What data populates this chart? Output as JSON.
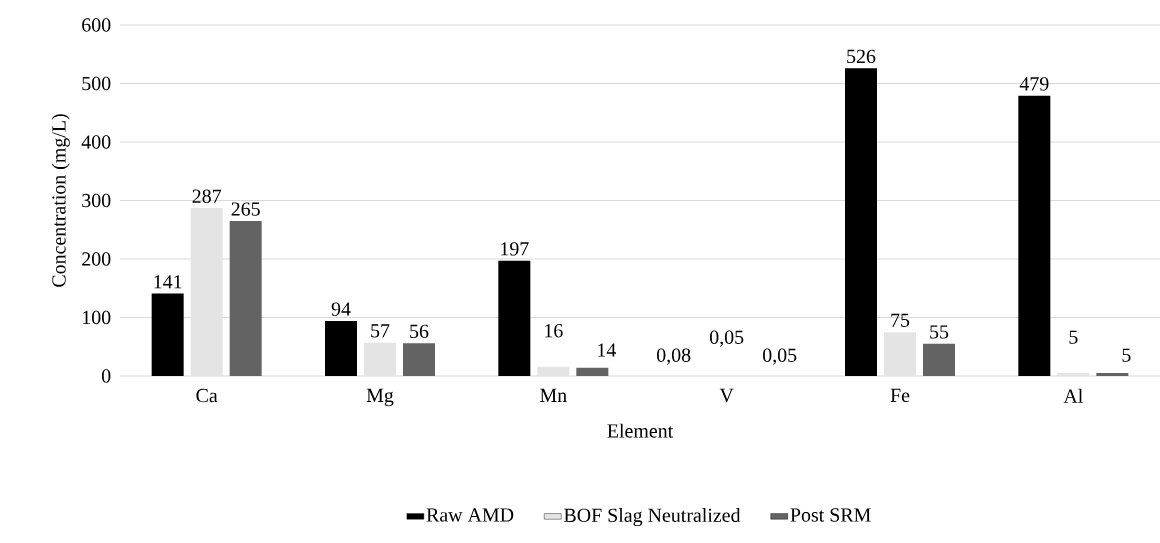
{
  "chart_data": {
    "type": "bar",
    "xlabel": "Element",
    "ylabel": "Concentration (mg/L)",
    "categories": [
      "Ca",
      "Mg",
      "Mn",
      "V",
      "Fe",
      "Al"
    ],
    "series": [
      {
        "name": "Raw AMD",
        "color": "#000000",
        "values": [
          141,
          94,
          197,
          0.08,
          526,
          479
        ],
        "value_labels": [
          "141",
          "94",
          "197",
          "0,08",
          "526",
          "479"
        ]
      },
      {
        "name": "BOF Slag Neutralized",
        "color": "#e4e4e4",
        "values": [
          287,
          57,
          16,
          0.05,
          75,
          5
        ],
        "value_labels": [
          "287",
          "57",
          "16",
          "0,05",
          "75",
          "5"
        ]
      },
      {
        "name": "Post SRM",
        "color": "#636363",
        "values": [
          265,
          56,
          14,
          0.05,
          55,
          5
        ],
        "value_labels": [
          "265",
          "56",
          "14",
          "0,05",
          "55",
          "5"
        ]
      }
    ],
    "ylim": [
      0,
      600
    ],
    "yticks": [
      0,
      100,
      200,
      300,
      400,
      500,
      600
    ],
    "grid": "y",
    "legend": "bottom"
  }
}
